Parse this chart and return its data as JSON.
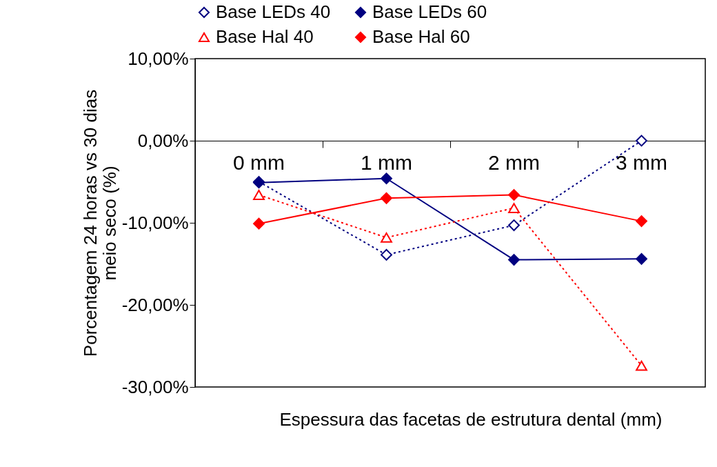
{
  "chart_data": {
    "type": "line",
    "xlabel": "Espessura das facetas de estrutura dental (mm)",
    "ylabel": "Porcentagem 24 horas vs 30 dias\nmeio seco (%)",
    "categories": [
      "0 mm",
      "1 mm",
      "2 mm",
      "3 mm"
    ],
    "series": [
      {
        "name": "Base LEDs 40",
        "color": "#000080",
        "line_style": "dotted",
        "marker": "diamond",
        "values": [
          -5.0,
          -13.9,
          -10.3,
          0.0
        ]
      },
      {
        "name": "Base LEDs 60",
        "color": "#000080",
        "line_style": "solid",
        "marker": "diamond",
        "values": [
          -5.1,
          -4.6,
          -14.5,
          -14.4
        ]
      },
      {
        "name": "Base Hal 40",
        "color": "#ff0000",
        "line_style": "dotted",
        "marker": "triangle",
        "values": [
          -6.6,
          -11.8,
          -8.2,
          -27.4
        ]
      },
      {
        "name": "Base Hal 60",
        "color": "#ff0000",
        "line_style": "solid",
        "marker": "diamond",
        "values": [
          -10.1,
          -7.0,
          -6.6,
          -9.8
        ]
      }
    ],
    "ylim": [
      -30,
      10
    ],
    "yticks": [
      {
        "value": -30,
        "label": "-30,00%"
      },
      {
        "value": -20,
        "label": "-20,00%"
      },
      {
        "value": -10,
        "label": "-10,00%"
      },
      {
        "value": 0,
        "label": "0,00%"
      },
      {
        "value": 10,
        "label": "10,00%"
      }
    ],
    "grid": false,
    "legend": "top"
  }
}
